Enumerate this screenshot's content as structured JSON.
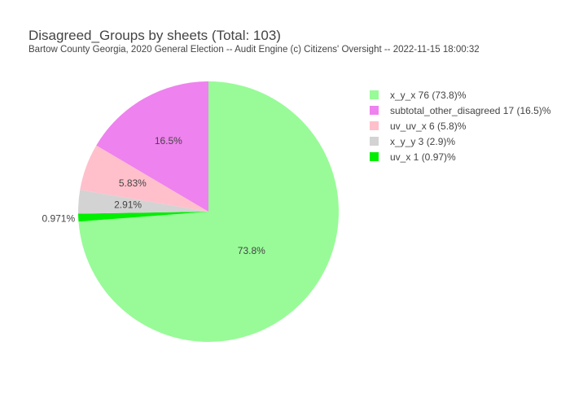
{
  "chart_data": {
    "type": "pie",
    "title": "Disagreed_Groups by sheets (Total: 103)",
    "subtitle": "Bartow County Georgia, 2020 General Election -- Audit Engine (c) Citizens' Oversight -- 2022-11-15 18:00:32",
    "slices": [
      {
        "legend": "x_y_x 76 (73.8)%",
        "value": 76,
        "pct_label": "73.8%",
        "color": "#98fb98"
      },
      {
        "legend": "uv_x 1 (0.97)%",
        "value": 1,
        "pct_label": "0.971%",
        "color": "#00ee00"
      },
      {
        "legend": "x_y_y 3 (2.9)%",
        "value": 3,
        "pct_label": "2.91%",
        "color": "#d3d3d3"
      },
      {
        "legend": "uv_uv_x 6 (5.8)%",
        "value": 6,
        "pct_label": "5.83%",
        "color": "#ffc0cb"
      },
      {
        "legend": "subtotal_other_disagreed 17 (16.5)%",
        "value": 17,
        "pct_label": "16.5%",
        "color": "#ee82ee"
      }
    ],
    "legend_order": [
      0,
      4,
      3,
      2,
      1
    ],
    "direction": "clockwise",
    "legend_position": "right"
  }
}
